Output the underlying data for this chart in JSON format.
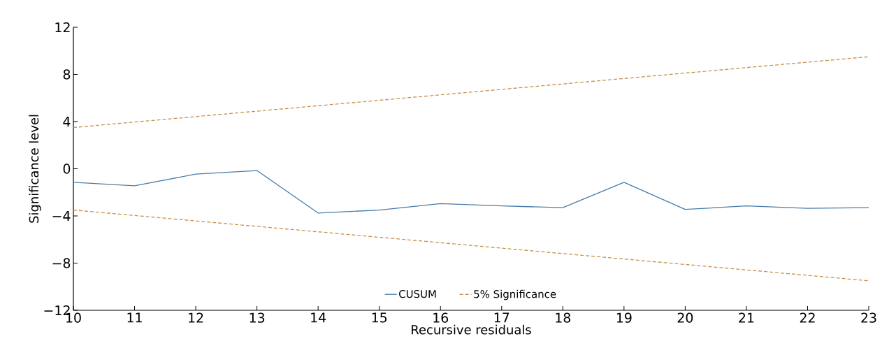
{
  "chart_data": {
    "type": "line",
    "xlabel": "Recursive residuals",
    "ylabel": "Significance level",
    "xlim": [
      10,
      23
    ],
    "ylim": [
      -12,
      12
    ],
    "xticks": [
      10,
      11,
      12,
      13,
      14,
      15,
      16,
      17,
      18,
      19,
      20,
      21,
      22,
      23
    ],
    "yticks": [
      {
        "value": -12,
        "label": "−12"
      },
      {
        "value": -8,
        "label": "−8"
      },
      {
        "value": -4,
        "label": "−4"
      },
      0,
      4,
      8,
      12
    ],
    "legend": "bottom",
    "grid": false,
    "series": [
      {
        "name": "CUSUM",
        "color": "#4a7ca8",
        "line_style": "solid",
        "x": [
          10,
          11,
          12,
          13,
          14,
          15,
          16,
          17,
          18,
          19,
          20,
          21,
          22,
          23
        ],
        "values": [
          -1.15,
          -1.45,
          -0.45,
          -0.15,
          -3.75,
          -3.5,
          -2.95,
          -3.15,
          -3.3,
          -1.15,
          -3.45,
          -3.15,
          -3.35,
          -3.3
        ]
      },
      {
        "name": "5% Significance",
        "color": "#c8904a",
        "line_style": "dashed",
        "x": [
          10,
          23
        ],
        "values": [
          3.5,
          9.5
        ]
      },
      {
        "color": "#c8904a",
        "line_style": "dashed",
        "x": [
          10,
          23
        ],
        "values": [
          -3.5,
          -9.5
        ]
      }
    ]
  }
}
